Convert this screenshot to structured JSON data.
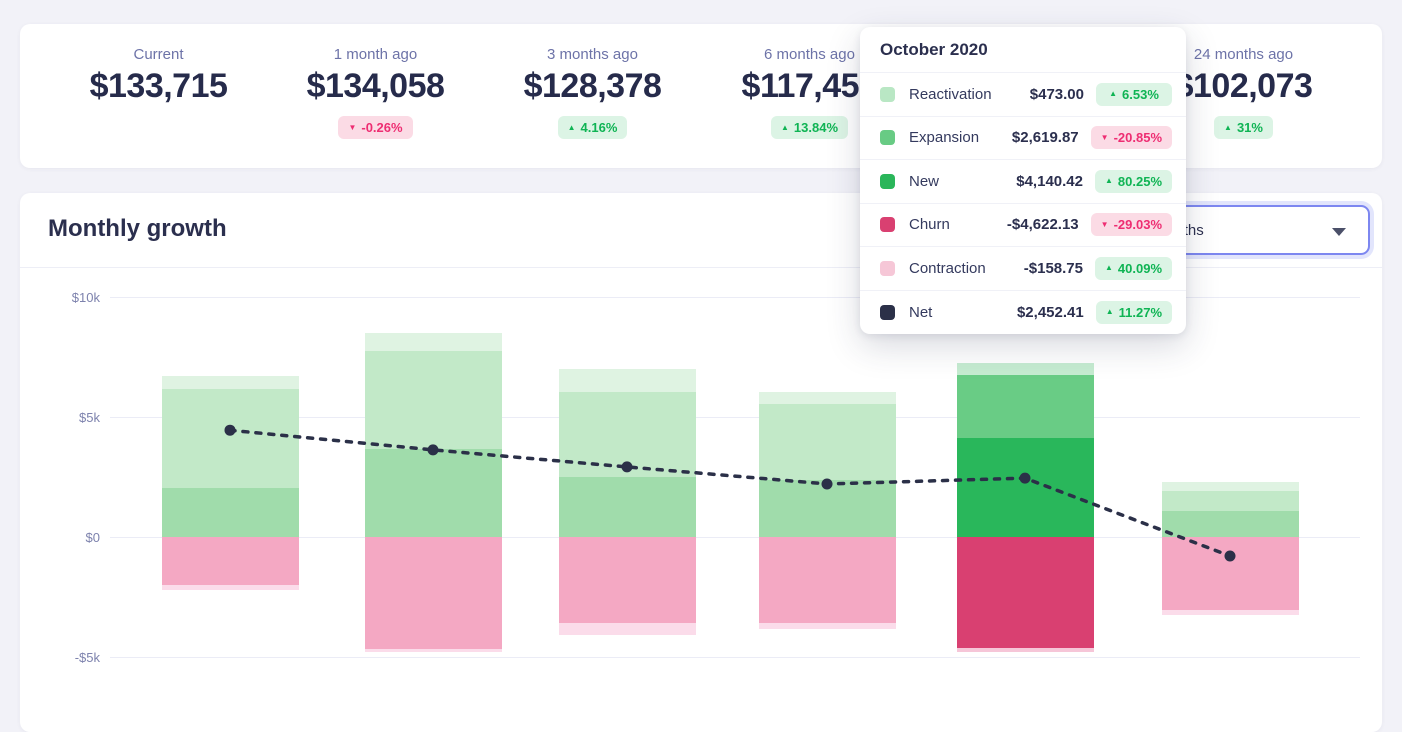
{
  "stats": {
    "columns": [
      {
        "label": "Current",
        "value": "$133,715",
        "badge": null
      },
      {
        "label": "1 month ago",
        "value": "$134,058",
        "badge": {
          "dir": "down",
          "text": "-0.26%"
        }
      },
      {
        "label": "3 months ago",
        "value": "$128,378",
        "badge": {
          "dir": "up",
          "text": "4.16%"
        }
      },
      {
        "label": "6 months ago",
        "value": "$117,459",
        "badge": {
          "dir": "up",
          "text": "13.84%"
        }
      },
      {
        "label": "",
        "value": "",
        "badge": null
      },
      {
        "label": "24 months ago",
        "value": "$102,073",
        "badge": {
          "dir": "up",
          "text": "31%"
        }
      }
    ]
  },
  "growth_card": {
    "title": "Monthly growth",
    "range_select": {
      "value": "6 months"
    }
  },
  "tooltip": {
    "title": "October 2020",
    "rows": [
      {
        "name": "Reactivation",
        "value": "$473.00",
        "swatch": "#b9e7c4",
        "badge": {
          "dir": "up",
          "text": "6.53%"
        }
      },
      {
        "name": "Expansion",
        "value": "$2,619.87",
        "swatch": "#68cb84",
        "badge": {
          "dir": "down",
          "text": "-20.85%"
        }
      },
      {
        "name": "New",
        "value": "$4,140.42",
        "swatch": "#2ab65a",
        "badge": {
          "dir": "up",
          "text": "80.25%"
        }
      },
      {
        "name": "Churn",
        "value": "-$4,622.13",
        "swatch": "#d94071",
        "badge": {
          "dir": "down",
          "text": "-29.03%"
        }
      },
      {
        "name": "Contraction",
        "value": "-$158.75",
        "swatch": "#f6c7d7",
        "badge": {
          "dir": "up",
          "text": "40.09%"
        }
      },
      {
        "name": "Net",
        "value": "$2,452.41",
        "swatch": "#2b3048",
        "badge": {
          "dir": "up",
          "text": "11.27%"
        }
      }
    ]
  },
  "chart_data": {
    "type": "bar",
    "subtype": "stacked-bars-with-line-overlay",
    "title": "Monthly growth",
    "x": [
      "",
      "",
      "",
      "",
      "October 2020",
      ""
    ],
    "hovered_index": 4,
    "y_ticks": [
      "$10k",
      "$5k",
      "$0",
      "-$5k"
    ],
    "ylim": [
      -5000,
      10000
    ],
    "grid": true,
    "legend_position": "tooltip-only",
    "series": [
      {
        "name": "New",
        "type": "bar",
        "values": [
          2050,
          3650,
          2500,
          2380,
          4140.42,
          1080
        ]
      },
      {
        "name": "Expansion",
        "type": "bar",
        "values": [
          4100,
          4100,
          3550,
          3170,
          2619.87,
          830
        ]
      },
      {
        "name": "Reactivation",
        "type": "bar",
        "values": [
          550,
          750,
          950,
          500,
          473,
          370
        ]
      },
      {
        "name": "Churn",
        "type": "bar",
        "values": [
          -2000,
          -4650,
          -3600,
          -3600,
          -4622.13,
          -3050
        ]
      },
      {
        "name": "Contraction",
        "type": "bar",
        "values": [
          -200,
          -150,
          -500,
          -250,
          -158.75,
          -200
        ]
      },
      {
        "name": "Net",
        "type": "line",
        "values": [
          4450,
          3630,
          2920,
          2210,
          2452.41,
          -790
        ]
      }
    ],
    "colors": {
      "normal": {
        "Reactivation": "#dff3e2",
        "Expansion": "#c2e9c8",
        "New": "#a0dcab",
        "Churn": "#f4a8c3",
        "Contraction": "#fbdcea"
      },
      "hovered": {
        "Reactivation": "#c6ecd1",
        "Expansion": "#69cc85",
        "New": "#29b75b",
        "Churn": "#d94071",
        "Contraction": "#f6c6d8"
      },
      "net_line": "#2b3048"
    }
  },
  "theme": {
    "page_bg": "#f2f2f8",
    "label_purple": "#6d73a8",
    "value_navy": "#262b4b",
    "badge_up_bg": "#dcf4e5",
    "badge_up_text": "#0fb454",
    "badge_down_bg": "#fbdbe5",
    "badge_down_text": "#ee2d72",
    "select_border": "#7d87f0"
  }
}
